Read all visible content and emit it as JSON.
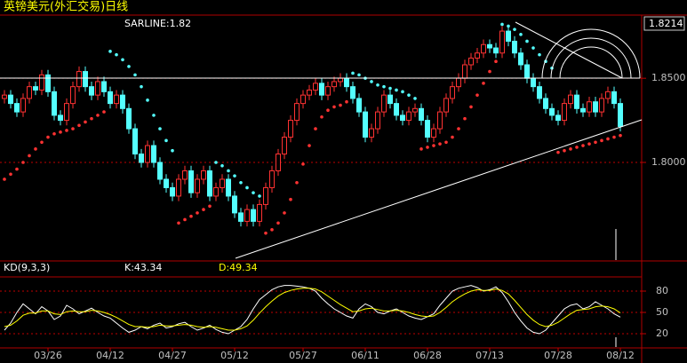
{
  "chart_data": [
    {
      "type": "candlestick",
      "title": "英镑美元(外汇交易)日线",
      "annotation": "SARLINE:1.82",
      "current_label": "1.8214",
      "up_color": "#ff3232",
      "down_color": "#54ffff",
      "ylim": [
        1.742,
        1.887
      ],
      "yticks": [
        {
          "value": 1.85,
          "label": "1.8500"
        },
        {
          "value": 1.8,
          "label": "1.8000"
        }
      ],
      "grid": true,
      "open": [
        1.838,
        1.84,
        1.835,
        1.83,
        1.838,
        1.845,
        1.843,
        1.852,
        1.842,
        1.828,
        1.825,
        1.835,
        1.845,
        1.854,
        1.845,
        1.84,
        1.848,
        1.842,
        1.835,
        1.84,
        1.832,
        1.82,
        1.805,
        1.8,
        1.81,
        1.8,
        1.79,
        1.785,
        1.78,
        1.79,
        1.795,
        1.782,
        1.79,
        1.795,
        1.78,
        1.785,
        1.79,
        1.78,
        1.77,
        1.765,
        1.772,
        1.765,
        1.775,
        1.785,
        1.795,
        1.805,
        1.815,
        1.825,
        1.835,
        1.84,
        1.843,
        1.847,
        1.84,
        1.845,
        1.848,
        1.85,
        1.845,
        1.838,
        1.83,
        1.815,
        1.82,
        1.83,
        1.84,
        1.835,
        1.828,
        1.825,
        1.83,
        1.832,
        1.825,
        1.815,
        1.82,
        1.83,
        1.838,
        1.845,
        1.85,
        1.858,
        1.862,
        1.865,
        1.87,
        1.868,
        1.865,
        1.878,
        1.872,
        1.865,
        1.858,
        1.85,
        1.845,
        1.838,
        1.832,
        1.828,
        1.825,
        1.835,
        1.84,
        1.832,
        1.83,
        1.836,
        1.83,
        1.838,
        1.842,
        1.835
      ],
      "high": [
        1.843,
        1.843,
        1.838,
        1.841,
        1.848,
        1.848,
        1.855,
        1.855,
        1.845,
        1.831,
        1.838,
        1.848,
        1.857,
        1.857,
        1.848,
        1.851,
        1.851,
        1.845,
        1.843,
        1.843,
        1.835,
        1.823,
        1.808,
        1.813,
        1.813,
        1.803,
        1.793,
        1.788,
        1.793,
        1.798,
        1.798,
        1.793,
        1.798,
        1.798,
        1.788,
        1.793,
        1.793,
        1.783,
        1.773,
        1.775,
        1.775,
        1.778,
        1.788,
        1.798,
        1.808,
        1.818,
        1.828,
        1.838,
        1.843,
        1.846,
        1.85,
        1.85,
        1.848,
        1.851,
        1.853,
        1.853,
        1.848,
        1.841,
        1.833,
        1.823,
        1.833,
        1.843,
        1.843,
        1.838,
        1.831,
        1.833,
        1.835,
        1.835,
        1.828,
        1.823,
        1.833,
        1.841,
        1.848,
        1.853,
        1.861,
        1.865,
        1.868,
        1.873,
        1.873,
        1.871,
        1.881,
        1.881,
        1.875,
        1.868,
        1.861,
        1.853,
        1.848,
        1.841,
        1.835,
        1.831,
        1.838,
        1.843,
        1.843,
        1.835,
        1.839,
        1.839,
        1.841,
        1.845,
        1.845,
        1.838
      ],
      "low": [
        1.835,
        1.832,
        1.827,
        1.827,
        1.835,
        1.84,
        1.84,
        1.839,
        1.825,
        1.822,
        1.822,
        1.832,
        1.842,
        1.842,
        1.837,
        1.837,
        1.839,
        1.832,
        1.832,
        1.829,
        1.817,
        1.802,
        1.797,
        1.797,
        1.797,
        1.787,
        1.782,
        1.777,
        1.777,
        1.787,
        1.779,
        1.779,
        1.787,
        1.777,
        1.777,
        1.782,
        1.777,
        1.767,
        1.762,
        1.762,
        1.762,
        1.762,
        1.772,
        1.782,
        1.792,
        1.802,
        1.812,
        1.822,
        1.832,
        1.837,
        1.84,
        1.837,
        1.837,
        1.842,
        1.845,
        1.842,
        1.835,
        1.827,
        1.812,
        1.812,
        1.817,
        1.827,
        1.832,
        1.825,
        1.822,
        1.822,
        1.827,
        1.822,
        1.812,
        1.812,
        1.817,
        1.827,
        1.835,
        1.842,
        1.847,
        1.855,
        1.859,
        1.862,
        1.865,
        1.862,
        1.862,
        1.869,
        1.862,
        1.855,
        1.847,
        1.842,
        1.835,
        1.829,
        1.825,
        1.822,
        1.822,
        1.832,
        1.829,
        1.827,
        1.827,
        1.827,
        1.827,
        1.835,
        1.832,
        1.8184
      ],
      "close": [
        1.84,
        1.835,
        1.83,
        1.838,
        1.845,
        1.843,
        1.852,
        1.842,
        1.828,
        1.825,
        1.835,
        1.845,
        1.854,
        1.845,
        1.84,
        1.848,
        1.842,
        1.835,
        1.84,
        1.832,
        1.82,
        1.805,
        1.8,
        1.81,
        1.8,
        1.79,
        1.785,
        1.78,
        1.79,
        1.795,
        1.782,
        1.79,
        1.795,
        1.78,
        1.785,
        1.79,
        1.78,
        1.77,
        1.765,
        1.772,
        1.765,
        1.775,
        1.785,
        1.795,
        1.805,
        1.815,
        1.825,
        1.835,
        1.84,
        1.843,
        1.847,
        1.84,
        1.845,
        1.848,
        1.85,
        1.845,
        1.838,
        1.83,
        1.815,
        1.82,
        1.83,
        1.84,
        1.835,
        1.828,
        1.825,
        1.83,
        1.832,
        1.825,
        1.815,
        1.82,
        1.83,
        1.838,
        1.845,
        1.85,
        1.858,
        1.862,
        1.865,
        1.87,
        1.868,
        1.865,
        1.878,
        1.872,
        1.865,
        1.858,
        1.85,
        1.845,
        1.838,
        1.832,
        1.828,
        1.825,
        1.835,
        1.84,
        1.832,
        1.83,
        1.836,
        1.83,
        1.838,
        1.842,
        1.835,
        1.8214
      ],
      "sar": [
        1.79,
        1.793,
        1.796,
        1.8,
        1.804,
        1.808,
        1.812,
        1.815,
        1.817,
        1.818,
        1.819,
        1.82,
        1.822,
        1.824,
        1.826,
        1.828,
        1.83,
        1.866,
        1.864,
        1.861,
        1.857,
        1.852,
        1.845,
        1.837,
        1.828,
        1.82,
        1.813,
        1.807,
        1.764,
        1.766,
        1.768,
        1.77,
        1.772,
        1.774,
        1.8,
        1.798,
        1.795,
        1.792,
        1.788,
        1.785,
        1.782,
        1.78,
        1.758,
        1.76,
        1.764,
        1.77,
        1.778,
        1.788,
        1.799,
        1.81,
        1.82,
        1.827,
        1.831,
        1.833,
        1.834,
        1.836,
        1.853,
        1.852,
        1.85,
        1.848,
        1.846,
        1.845,
        1.844,
        1.843,
        1.842,
        1.84,
        1.838,
        1.808,
        1.809,
        1.81,
        1.811,
        1.812,
        1.815,
        1.82,
        1.826,
        1.833,
        1.84,
        1.847,
        1.854,
        1.86,
        1.882,
        1.881,
        1.879,
        1.876,
        1.872,
        1.868,
        1.864,
        1.86,
        1.856,
        1.806,
        1.807,
        1.808,
        1.809,
        1.81,
        1.811,
        1.812,
        1.813,
        1.814,
        1.815,
        1.816
      ]
    },
    {
      "type": "line",
      "title": "KD(9,3,3)",
      "k_label": "K:43.34",
      "d_label": "D:49.34",
      "ylim": [
        0,
        100
      ],
      "yticks": [
        80,
        50,
        20
      ],
      "grid": true,
      "categories": [
        null,
        null,
        null,
        null,
        null,
        null,
        null,
        "03/26",
        null,
        null,
        null,
        null,
        null,
        null,
        null,
        null,
        null,
        "04/12",
        null,
        null,
        null,
        null,
        null,
        null,
        null,
        null,
        null,
        "04/27",
        null,
        null,
        null,
        null,
        null,
        null,
        null,
        null,
        null,
        "05/12",
        null,
        null,
        null,
        null,
        null,
        null,
        null,
        null,
        null,
        null,
        "05/27",
        null,
        null,
        null,
        null,
        null,
        null,
        null,
        null,
        null,
        "06/11",
        null,
        null,
        null,
        null,
        null,
        null,
        null,
        null,
        null,
        "06/28",
        null,
        null,
        null,
        null,
        null,
        null,
        null,
        null,
        null,
        "07/13",
        null,
        null,
        null,
        null,
        null,
        null,
        null,
        null,
        null,
        null,
        "07/28",
        null,
        null,
        null,
        null,
        null,
        null,
        null,
        null,
        null,
        "08/12"
      ],
      "series": [
        {
          "color": "#ffffff",
          "values": [
            25,
            35,
            50,
            62,
            55,
            48,
            58,
            52,
            40,
            45,
            60,
            55,
            48,
            52,
            56,
            50,
            45,
            42,
            35,
            28,
            22,
            25,
            30,
            27,
            32,
            35,
            28,
            30,
            34,
            36,
            30,
            25,
            28,
            32,
            26,
            22,
            20,
            25,
            30,
            40,
            55,
            68,
            75,
            82,
            86,
            88,
            88,
            87,
            86,
            84,
            80,
            70,
            62,
            55,
            50,
            45,
            42,
            55,
            62,
            58,
            50,
            48,
            52,
            55,
            50,
            45,
            42,
            40,
            44,
            48,
            60,
            70,
            80,
            84,
            86,
            88,
            85,
            80,
            82,
            86,
            78,
            65,
            50,
            38,
            28,
            22,
            20,
            25,
            35,
            45,
            55,
            60,
            62,
            55,
            58,
            65,
            60,
            55,
            48,
            43.34
          ]
        },
        {
          "color": "#ffff00",
          "values": [
            30,
            32,
            38,
            46,
            49,
            49,
            52,
            52,
            48,
            47,
            51,
            52,
            51,
            51,
            53,
            52,
            50,
            47,
            43,
            38,
            33,
            30,
            30,
            29,
            30,
            32,
            31,
            31,
            32,
            33,
            32,
            30,
            29,
            30,
            29,
            27,
            25,
            25,
            27,
            31,
            39,
            49,
            58,
            66,
            73,
            78,
            81,
            83,
            84,
            84,
            83,
            79,
            73,
            67,
            61,
            56,
            51,
            52,
            55,
            56,
            54,
            52,
            52,
            53,
            52,
            50,
            47,
            45,
            44,
            45,
            50,
            57,
            65,
            71,
            76,
            80,
            82,
            81,
            81,
            83,
            81,
            76,
            67,
            57,
            47,
            39,
            33,
            30,
            32,
            36,
            42,
            48,
            53,
            54,
            55,
            58,
            59,
            58,
            55,
            49.34
          ]
        }
      ]
    }
  ]
}
